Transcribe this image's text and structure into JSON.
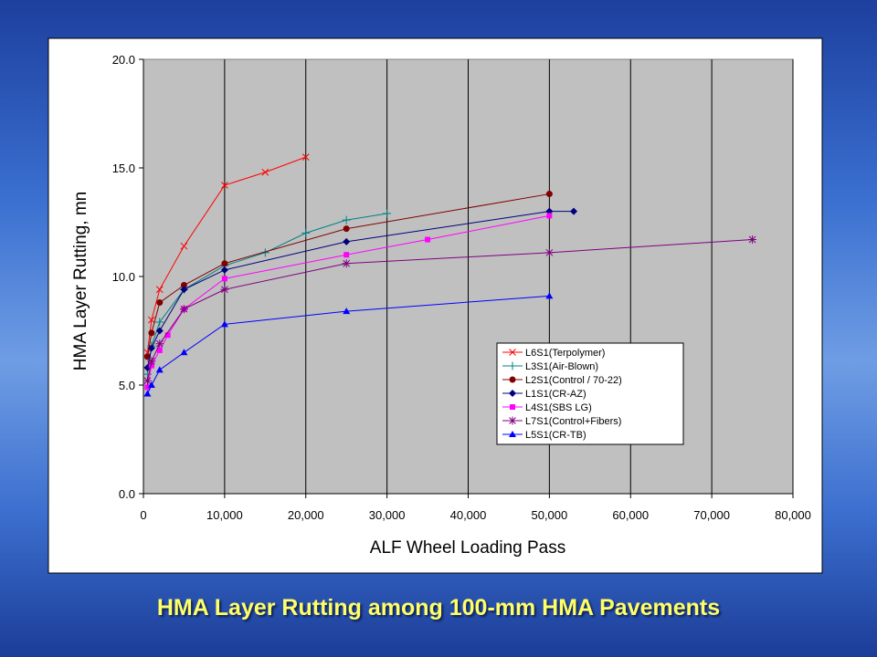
{
  "chart_data": {
    "type": "line",
    "x_label": "ALF Wheel Loading Pass",
    "y_label": "HMA Layer Rutting, mn",
    "xlim": [
      0,
      80000
    ],
    "ylim": [
      0,
      20
    ],
    "xticks": [
      0,
      {
        "value": 10000,
        "label": "10,000"
      },
      {
        "value": 20000,
        "label": "20,000"
      },
      {
        "value": 30000,
        "label": "30,000"
      },
      {
        "value": 40000,
        "label": "40,000"
      },
      {
        "value": 50000,
        "label": "50,000"
      },
      {
        "value": 60000,
        "label": "60,000"
      },
      {
        "value": 70000,
        "label": "70,000"
      },
      {
        "value": 80000,
        "label": "80,000"
      }
    ],
    "yticks": [
      {
        "value": 0,
        "label": "0.0"
      },
      {
        "value": 5,
        "label": "5.0"
      },
      {
        "value": 10,
        "label": "10.0"
      },
      {
        "value": 15,
        "label": "15.0"
      },
      {
        "value": 20,
        "label": "20.0"
      }
    ],
    "grid": "x",
    "legend": "lower-right",
    "series": [
      {
        "name": "L6S1(Terpolymer)",
        "color": "#ff0000",
        "marker": "x",
        "x": [
          500,
          1000,
          2000,
          5000,
          10000,
          15000,
          20000
        ],
        "values": [
          6.5,
          8.0,
          9.4,
          11.4,
          14.2,
          14.8,
          15.5
        ]
      },
      {
        "name": "L3S1(Air-Blown)",
        "color": "#008080",
        "marker": "plus",
        "x": [
          500,
          1000,
          2000,
          5000,
          10000,
          15000,
          20000,
          25000,
          30000
        ],
        "values": [
          5.5,
          6.8,
          7.9,
          9.4,
          10.5,
          11.1,
          12.0,
          12.6,
          12.9
        ]
      },
      {
        "name": "L2S1(Control / 70-22)",
        "color": "#800000",
        "marker": "circle",
        "x": [
          500,
          1000,
          2000,
          5000,
          10000,
          25000,
          50000
        ],
        "values": [
          6.3,
          7.4,
          8.8,
          9.6,
          10.6,
          12.2,
          13.8
        ]
      },
      {
        "name": "L1S1(CR-AZ)",
        "color": "#000080",
        "marker": "diamond",
        "x": [
          500,
          1000,
          2000,
          5000,
          10000,
          25000,
          50000,
          53000
        ],
        "values": [
          5.8,
          6.7,
          7.5,
          9.4,
          10.3,
          11.6,
          13.0,
          13.0
        ]
      },
      {
        "name": "L4S1(SBS LG)",
        "color": "#ff00ff",
        "marker": "square",
        "x": [
          500,
          1000,
          2000,
          3000,
          5000,
          10000,
          25000,
          35000,
          50000
        ],
        "values": [
          4.9,
          5.9,
          6.6,
          7.3,
          8.5,
          9.9,
          11.0,
          11.7,
          12.8
        ]
      },
      {
        "name": "L7S1(Control+Fibers)",
        "color": "#800080",
        "marker": "star",
        "x": [
          500,
          1000,
          2000,
          5000,
          10000,
          25000,
          50000,
          75000
        ],
        "values": [
          5.2,
          6.1,
          6.9,
          8.5,
          9.4,
          10.6,
          11.1,
          11.7
        ]
      },
      {
        "name": "L5S1(CR-TB)",
        "color": "#0000ff",
        "marker": "triangle",
        "x": [
          500,
          1000,
          2000,
          5000,
          10000,
          25000,
          50000
        ],
        "values": [
          4.6,
          5.0,
          5.7,
          6.5,
          7.8,
          8.4,
          9.1
        ]
      }
    ]
  },
  "slide": {
    "caption": "HMA Layer Rutting among 100-mm HMA Pavements"
  }
}
